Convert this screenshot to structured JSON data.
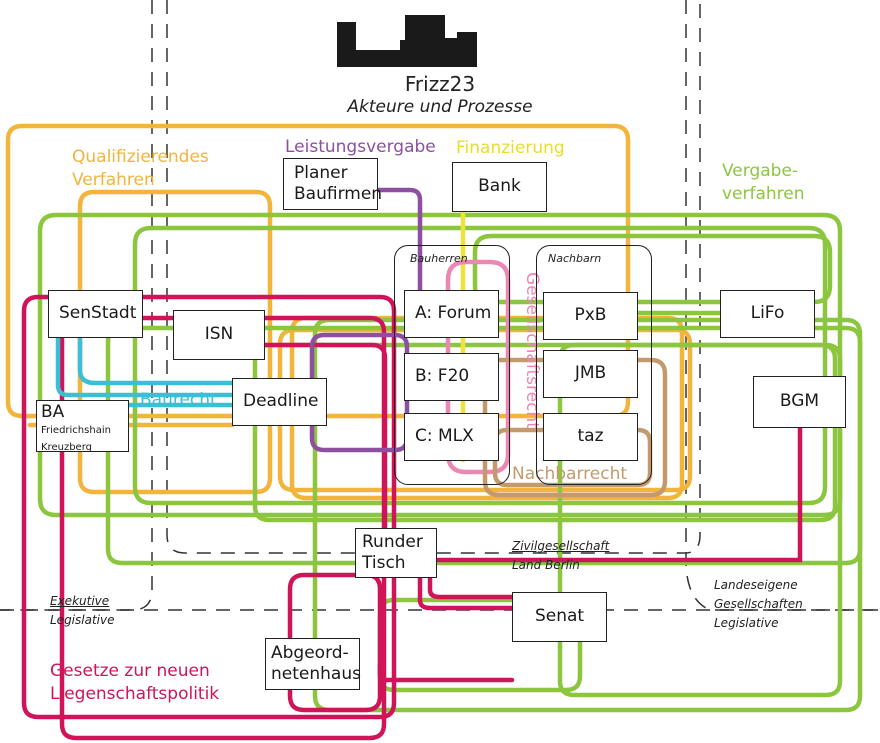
{
  "header": {
    "title": "Frizz23",
    "subtitle": "Akteure und Prozesse"
  },
  "colors": {
    "orange": "#f2b43a",
    "green": "#8cc63f",
    "magenta": "#d0145a",
    "purple": "#8e4fa0",
    "cyan": "#3bbfd6",
    "pink": "#ec86b2",
    "tan": "#c49a6c",
    "yellow": "#eee33a"
  },
  "processes": {
    "qualifizierendes": "Qualifizierendes\nVerfahren",
    "leistungsvergabe": "Leistungsvergabe",
    "finanzierung": "Finanzierung",
    "vergabeverfahren": "Vergabe-\nverfahren",
    "baurecht": "Baurecht",
    "gesellschaftsrecht": "Gesellschaftsrecht",
    "nachbarrecht": "Nachbarrecht",
    "gesetze": "Gesetze zur neuen\nLiegenschaftspolitik"
  },
  "groups": {
    "bauherren": "Bauherren",
    "nachbarn": "Nachbarn"
  },
  "actors": {
    "planer": "Planer\nBaufirmen",
    "bank": "Bank",
    "senstadt": "SenStadt",
    "isn": "ISN",
    "deadline": "Deadline",
    "ba": "BA",
    "ba_sub": "Friedrichshain\nKreuzberg",
    "forum": "A: Forum",
    "f20": "B: F20",
    "mlx": "C: MLX",
    "pxb": "PxB",
    "jmb": "JMB",
    "taz": "taz",
    "lifo": "LiFo",
    "bgm": "BGM",
    "runder_tisch": "Runder\nTisch",
    "senat": "Senat",
    "abgeordnetenhaus": "Abgeord-\nnetenhaus"
  },
  "sphere_labels": {
    "exekutive": "Exekutive",
    "legislative_left": "Legislative",
    "zivilgesellschaft": "Zivilgesellschaft",
    "land_berlin": "Land Berlin",
    "landeseigene": "Landeseigene\nGesellschaften",
    "legislative_right": "Legislative"
  }
}
